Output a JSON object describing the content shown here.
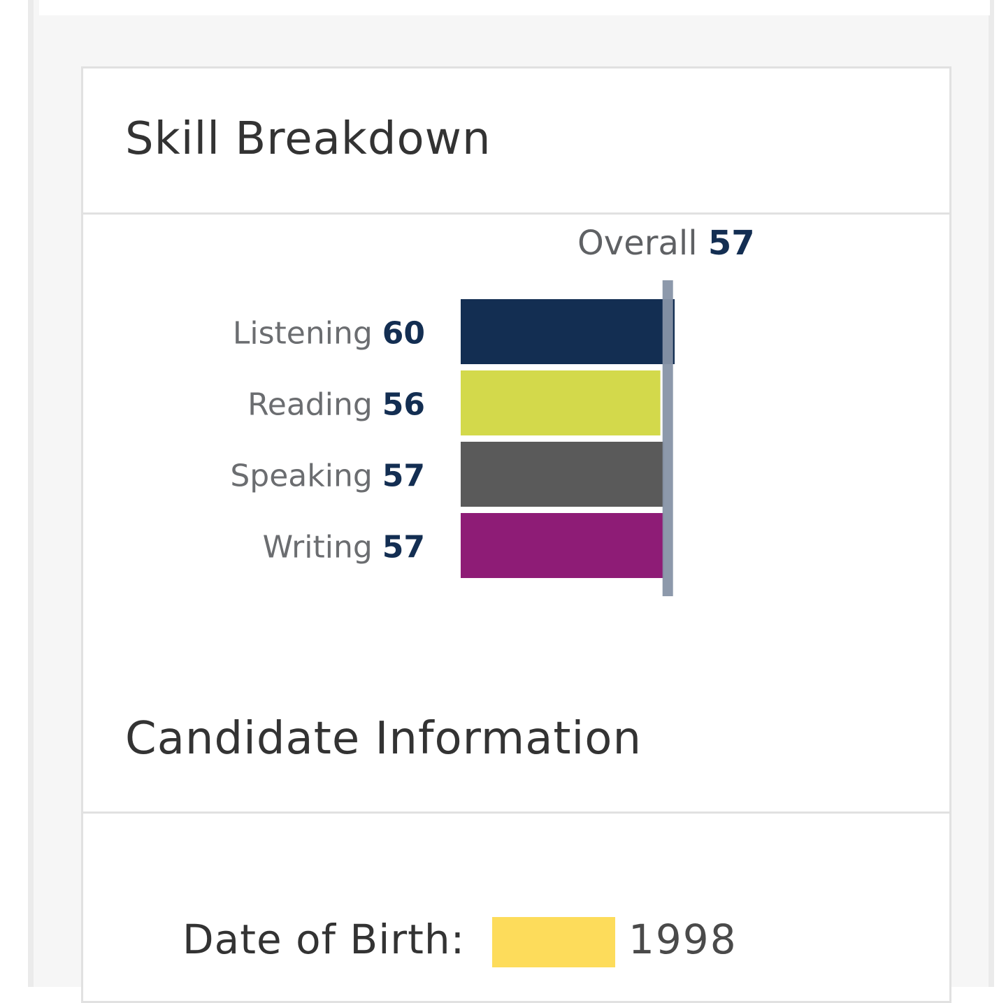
{
  "skill_section": {
    "title": "Skill Breakdown"
  },
  "candidate_section": {
    "title": "Candidate Information"
  },
  "overall": {
    "label": "Overall",
    "value": "57"
  },
  "date_of_birth": {
    "label": "Date of Birth:",
    "year": "1998"
  },
  "chart_data": {
    "type": "bar",
    "orientation": "horizontal",
    "categories": [
      "Listening",
      "Reading",
      "Speaking",
      "Writing"
    ],
    "values": [
      60,
      56,
      57,
      57
    ],
    "value_labels": [
      "60",
      "56",
      "57",
      "57"
    ],
    "colors": [
      "#132e52",
      "#d3d94b",
      "#5a5a5a",
      "#8e1c76"
    ],
    "reference_line": {
      "label": "Overall",
      "value": 57,
      "color": "#8794a6"
    },
    "title": "",
    "xlabel": "",
    "ylabel": "",
    "grid": false,
    "legend": "none"
  }
}
